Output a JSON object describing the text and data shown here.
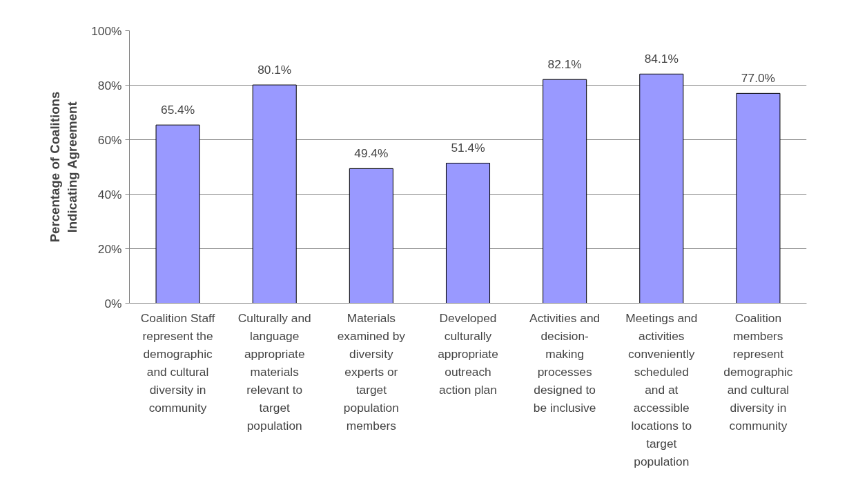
{
  "chart_data": {
    "type": "bar",
    "ylabel": "Percentage of Coalitions\nIndicating Agreement",
    "categories": [
      "Coalition Staff\nrepresent the\ndemographic\nand cultural\ndiversity in\ncommunity",
      "Culturally and\nlanguage\nappropriate\nmaterials\nrelevant to\ntarget\npopulation",
      "Materials\nexamined by\ndiversity\nexperts or\ntarget\npopulation\nmembers",
      "Developed\nculturally\nappropriate\noutreach\naction plan",
      "Activities and\ndecision-\nmaking\nprocesses\ndesigned to\nbe inclusive",
      "Meetings and\nactivities\nconveniently\nscheduled\nand at\naccessible\nlocations to\ntarget\npopulation",
      "Coalition\nmembers\nrepresent\ndemographic\nand cultural\ndiversity in\ncommunity"
    ],
    "values": [
      65.4,
      80.1,
      49.4,
      51.4,
      82.1,
      84.1,
      77.0
    ],
    "value_labels": [
      "65.4%",
      "80.1%",
      "49.4%",
      "51.4%",
      "82.1%",
      "84.1%",
      "77.0%"
    ],
    "color": "#9999ff",
    "ylim": [
      0,
      100
    ],
    "yticks": [
      {
        "value": 0,
        "label": "0%"
      },
      {
        "value": 20,
        "label": "20%"
      },
      {
        "value": 40,
        "label": "40%"
      },
      {
        "value": 60,
        "label": "60%"
      },
      {
        "value": 80,
        "label": "80%"
      },
      {
        "value": 100,
        "label": "100%"
      }
    ],
    "grid": "y"
  }
}
